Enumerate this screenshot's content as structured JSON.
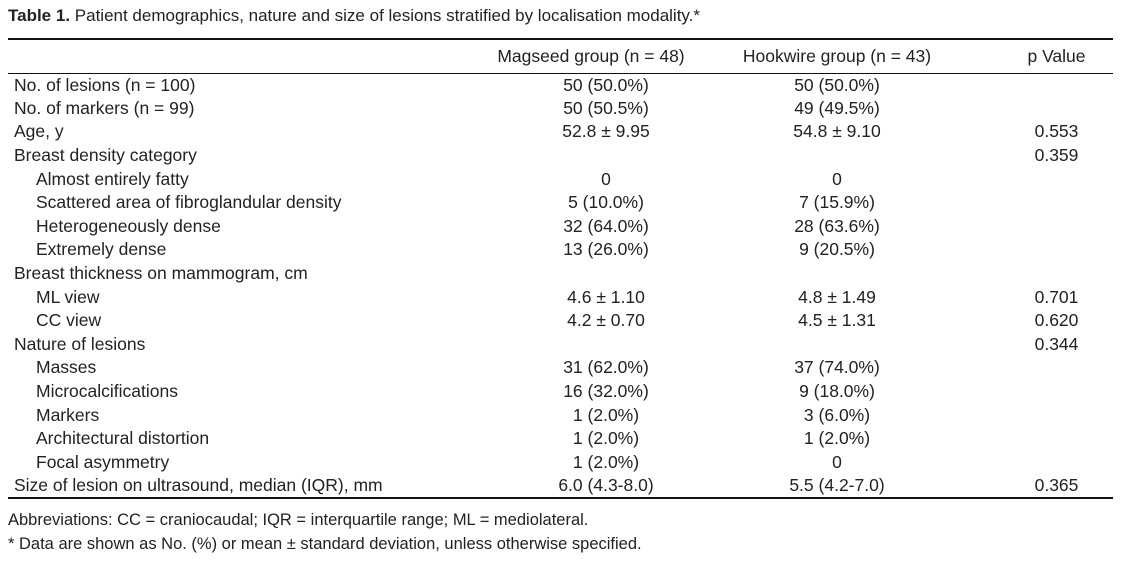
{
  "caption": {
    "label": "Table 1.",
    "text": " Patient demographics, nature and size of lesions stratified by localisation modality.*"
  },
  "table": {
    "headers": [
      "",
      "Magseed group (n = 48)",
      "Hookwire group (n = 43)",
      "p Value"
    ],
    "rows": [
      {
        "label": "No. of lesions (n = 100)",
        "magseed": "50 (50.0%)",
        "hookwire": "50 (50.0%)",
        "p": "",
        "indent": false
      },
      {
        "label": "No. of markers (n = 99)",
        "magseed": "50 (50.5%)",
        "hookwire": "49 (49.5%)",
        "p": "",
        "indent": false
      },
      {
        "label": "Age, y",
        "magseed": "52.8 ± 9.95",
        "hookwire": "54.8 ± 9.10",
        "p": "0.553",
        "indent": false
      },
      {
        "label": "Breast density category",
        "magseed": "",
        "hookwire": "",
        "p": "0.359",
        "indent": false
      },
      {
        "label": "Almost entirely fatty",
        "magseed": "0",
        "hookwire": "0",
        "p": "",
        "indent": true
      },
      {
        "label": "Scattered area of fibroglandular density",
        "magseed": "5 (10.0%)",
        "hookwire": "7 (15.9%)",
        "p": "",
        "indent": true
      },
      {
        "label": "Heterogeneously dense",
        "magseed": "32 (64.0%)",
        "hookwire": "28 (63.6%)",
        "p": "",
        "indent": true
      },
      {
        "label": "Extremely dense",
        "magseed": "13 (26.0%)",
        "hookwire": "9 (20.5%)",
        "p": "",
        "indent": true
      },
      {
        "label": "Breast thickness on mammogram, cm",
        "magseed": "",
        "hookwire": "",
        "p": "",
        "indent": false
      },
      {
        "label": "ML view",
        "magseed": "4.6 ± 1.10",
        "hookwire": "4.8 ± 1.49",
        "p": "0.701",
        "indent": true
      },
      {
        "label": "CC view",
        "magseed": "4.2 ± 0.70",
        "hookwire": "4.5 ± 1.31",
        "p": "0.620",
        "indent": true
      },
      {
        "label": "Nature of lesions",
        "magseed": "",
        "hookwire": "",
        "p": "0.344",
        "indent": false
      },
      {
        "label": "Masses",
        "magseed": "31 (62.0%)",
        "hookwire": "37 (74.0%)",
        "p": "",
        "indent": true
      },
      {
        "label": "Microcalcifications",
        "magseed": "16 (32.0%)",
        "hookwire": "9 (18.0%)",
        "p": "",
        "indent": true
      },
      {
        "label": "Markers",
        "magseed": "1 (2.0%)",
        "hookwire": "3 (6.0%)",
        "p": "",
        "indent": true
      },
      {
        "label": "Architectural distortion",
        "magseed": "1 (2.0%)",
        "hookwire": "1 (2.0%)",
        "p": "",
        "indent": true
      },
      {
        "label": "Focal asymmetry",
        "magseed": "1 (2.0%)",
        "hookwire": "0",
        "p": "",
        "indent": true
      },
      {
        "label": "Size of lesion on ultrasound, median (IQR), mm",
        "magseed": "6.0 (4.3-8.0)",
        "hookwire": "5.5 (4.2-7.0)",
        "p": "0.365",
        "indent": false
      }
    ]
  },
  "footnotes": {
    "abbreviations": "Abbreviations: CC = craniocaudal; IQR = interquartile range; ML = mediolateral.",
    "note": "* Data are shown as No. (%) or mean ± standard deviation, unless otherwise specified."
  }
}
